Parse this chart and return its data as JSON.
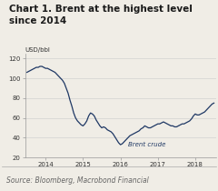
{
  "title": "Chart 1. Brent at the highest level\nsince 2014",
  "ylabel": "USD/bbl",
  "source": "Source: Bloomberg, Macrobond Financial",
  "annotation": "Brent crude",
  "line_color": "#1f3864",
  "background_color": "#f0ede6",
  "plot_bg_color": "#f0ede6",
  "ylim": [
    20,
    125
  ],
  "yticks": [
    20,
    40,
    60,
    80,
    100,
    120
  ],
  "xtick_labels": [
    "2014",
    "2015",
    "2016",
    "2017",
    "2018"
  ],
  "title_fontsize": 7.5,
  "source_fontsize": 5.5,
  "line_width": 0.9,
  "x": [
    0.0,
    0.05,
    0.1,
    0.15,
    0.2,
    0.25,
    0.3,
    0.35,
    0.4,
    0.45,
    0.5,
    0.55,
    0.6,
    0.65,
    0.7,
    0.75,
    0.8,
    0.85,
    0.9,
    0.95,
    1.0,
    1.05,
    1.1,
    1.15,
    1.2,
    1.25,
    1.3,
    1.35,
    1.4,
    1.45,
    1.5,
    1.55,
    1.6,
    1.65,
    1.7,
    1.75,
    1.8,
    1.85,
    1.9,
    1.95,
    2.0,
    2.05,
    2.1,
    2.15,
    2.2,
    2.25,
    2.3,
    2.35,
    2.4,
    2.45,
    2.5,
    2.55,
    2.6,
    2.65,
    2.7,
    2.75,
    2.8,
    2.85,
    2.9,
    2.95,
    3.0,
    3.05,
    3.1,
    3.15,
    3.2,
    3.25,
    3.3,
    3.35,
    3.4,
    3.45,
    3.5,
    3.55,
    3.6,
    3.65,
    3.7,
    3.75,
    3.8,
    3.85,
    3.9,
    3.95,
    4.0,
    4.05,
    4.1,
    4.15,
    4.2,
    4.25,
    4.3,
    4.35,
    4.4,
    4.45,
    4.5,
    4.55,
    4.6,
    4.65,
    4.7,
    4.75,
    4.8,
    4.85,
    4.9,
    4.95,
    5.0
  ],
  "y": [
    106,
    107,
    108,
    109,
    110,
    111,
    111,
    112,
    112,
    111,
    110,
    110,
    109,
    108,
    107,
    106,
    104,
    102,
    100,
    98,
    95,
    90,
    85,
    78,
    72,
    65,
    60,
    57,
    55,
    53,
    52,
    54,
    57,
    62,
    65,
    64,
    62,
    58,
    55,
    52,
    50,
    51,
    50,
    48,
    47,
    46,
    44,
    41,
    38,
    35,
    33,
    34,
    36,
    38,
    40,
    42,
    43,
    44,
    45,
    46,
    47,
    49,
    50,
    52,
    51,
    50,
    50,
    51,
    52,
    53,
    54,
    54,
    55,
    56,
    55,
    54,
    53,
    52,
    52,
    51,
    51,
    52,
    53,
    54,
    54,
    55,
    56,
    57,
    59,
    62,
    64,
    63,
    63,
    64,
    65,
    66,
    68,
    70,
    72,
    74,
    75
  ]
}
